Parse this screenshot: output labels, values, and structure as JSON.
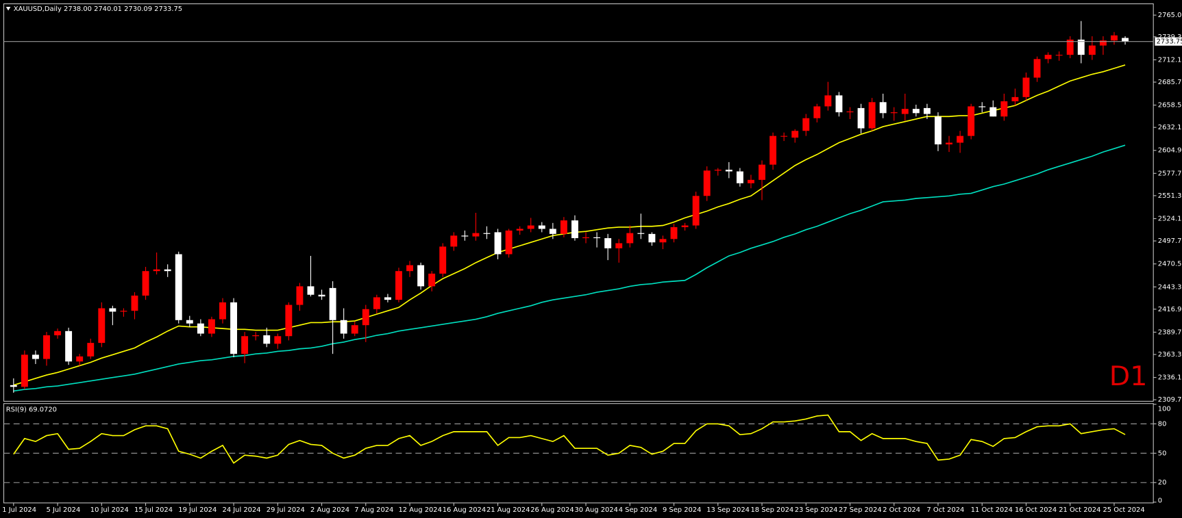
{
  "chart_data": [
    {
      "type": "candlestick",
      "title": "XAUUSD,Daily 2738.00 2740.01 2730.09 2733.75",
      "categories": [
        "1 Jul 2024",
        null,
        null,
        null,
        "5 Jul 2024",
        null,
        null,
        null,
        "10 Jul 2024",
        null,
        null,
        null,
        "15 Jul 2024",
        null,
        null,
        null,
        "19 Jul 2024",
        null,
        null,
        null,
        "24 Jul 2024",
        null,
        null,
        null,
        "29 Jul 2024",
        null,
        null,
        null,
        "2 Aug 2024",
        null,
        null,
        null,
        "7 Aug 2024",
        null,
        null,
        null,
        "12 Aug 2024",
        null,
        null,
        null,
        "16 Aug 2024",
        null,
        null,
        null,
        "21 Aug 2024",
        null,
        null,
        null,
        "26 Aug 2024",
        null,
        null,
        null,
        "30 Aug 2024",
        null,
        null,
        null,
        "4 Sep 2024",
        null,
        null,
        null,
        "9 Sep 2024",
        null,
        null,
        null,
        "13 Sep 2024",
        null,
        null,
        null,
        "18 Sep 2024",
        null,
        null,
        null,
        "23 Sep 2024",
        null,
        null,
        null,
        "27 Sep 2024",
        null,
        null,
        null,
        "2 Oct 2024",
        null,
        null,
        null,
        "7 Oct 2024",
        null,
        null,
        null,
        "11 Oct 2024",
        null,
        null,
        null,
        "16 Oct 2024",
        null,
        null,
        null,
        "21 Oct 2024",
        null,
        null,
        null,
        "25 Oct 2024",
        null
      ],
      "open": [
        2327,
        2325,
        2363,
        2358,
        2386,
        2391,
        2355,
        2361,
        2377,
        2418,
        2414,
        2415,
        2433,
        2462,
        2464,
        2482,
        2404,
        2400,
        2388,
        2405,
        2425,
        2364,
        2385,
        2386,
        2376,
        2385,
        2422,
        2444,
        2434,
        2442,
        2404,
        2388,
        2398,
        2417,
        2431,
        2428,
        2462,
        2469,
        2444,
        2459,
        2491,
        2504,
        2503,
        2507,
        2508,
        2482,
        2510,
        2512,
        2516,
        2512,
        2506,
        2522,
        2501,
        2502,
        2501,
        2489,
        2495,
        2507,
        2506,
        2496,
        2500,
        2514,
        2516,
        2551,
        2581,
        2582,
        2580,
        2566,
        2570,
        2588,
        2622,
        2620,
        2628,
        2643,
        2657,
        2670,
        2650,
        2655,
        2631,
        2662,
        2649,
        2648,
        2654,
        2655,
        2645,
        2612,
        2614,
        2622,
        2657,
        2656,
        2645,
        2663,
        2668,
        2691,
        2713,
        2718,
        2718,
        2736,
        2718,
        2729,
        2735,
        2738
      ],
      "high": [
        2335,
        2368,
        2368,
        2390,
        2394,
        2395,
        2364,
        2382,
        2425,
        2421,
        2418,
        2437,
        2467,
        2484,
        2470,
        2485,
        2409,
        2405,
        2408,
        2430,
        2430,
        2390,
        2390,
        2395,
        2388,
        2425,
        2448,
        2480,
        2440,
        2450,
        2418,
        2402,
        2422,
        2434,
        2435,
        2466,
        2474,
        2472,
        2462,
        2495,
        2508,
        2510,
        2531,
        2515,
        2512,
        2512,
        2515,
        2525,
        2520,
        2519,
        2526,
        2528,
        2508,
        2508,
        2506,
        2500,
        2516,
        2530,
        2508,
        2504,
        2518,
        2519,
        2556,
        2586,
        2584,
        2591,
        2584,
        2576,
        2593,
        2626,
        2626,
        2630,
        2648,
        2660,
        2686,
        2674,
        2656,
        2660,
        2667,
        2672,
        2656,
        2672,
        2659,
        2660,
        2650,
        2622,
        2628,
        2660,
        2662,
        2664,
        2672,
        2678,
        2697,
        2716,
        2721,
        2722,
        2740,
        2758,
        2740,
        2740,
        2745,
        2740.01
      ],
      "low": [
        2318,
        2322,
        2352,
        2350,
        2382,
        2351,
        2350,
        2358,
        2372,
        2398,
        2408,
        2405,
        2428,
        2458,
        2455,
        2400,
        2396,
        2385,
        2384,
        2400,
        2360,
        2353,
        2380,
        2372,
        2370,
        2380,
        2415,
        2432,
        2428,
        2364,
        2382,
        2385,
        2378,
        2412,
        2425,
        2425,
        2455,
        2440,
        2438,
        2455,
        2486,
        2498,
        2498,
        2500,
        2476,
        2478,
        2505,
        2508,
        2508,
        2500,
        2502,
        2498,
        2495,
        2490,
        2475,
        2472,
        2490,
        2500,
        2492,
        2488,
        2496,
        2510,
        2512,
        2545,
        2575,
        2572,
        2562,
        2560,
        2546,
        2582,
        2616,
        2614,
        2622,
        2638,
        2652,
        2645,
        2642,
        2625,
        2628,
        2643,
        2640,
        2640,
        2645,
        2642,
        2604,
        2603,
        2602,
        2618,
        2650,
        2645,
        2640,
        2658,
        2664,
        2686,
        2708,
        2711,
        2714,
        2708,
        2712,
        2718,
        2730,
        2730.09
      ],
      "close": [
        2325,
        2363,
        2358,
        2386,
        2391,
        2355,
        2361,
        2377,
        2418,
        2414,
        2415,
        2433,
        2462,
        2464,
        2462,
        2404,
        2400,
        2388,
        2405,
        2425,
        2364,
        2385,
        2386,
        2376,
        2385,
        2422,
        2444,
        2434,
        2432,
        2404,
        2388,
        2398,
        2417,
        2431,
        2428,
        2462,
        2469,
        2444,
        2459,
        2491,
        2504,
        2503,
        2507,
        2506,
        2482,
        2510,
        2512,
        2516,
        2512,
        2506,
        2522,
        2501,
        2502,
        2501,
        2489,
        2495,
        2507,
        2506,
        2496,
        2500,
        2514,
        2516,
        2551,
        2581,
        2582,
        2580,
        2566,
        2570,
        2588,
        2622,
        2622,
        2628,
        2643,
        2657,
        2670,
        2650,
        2651,
        2631,
        2662,
        2649,
        2650,
        2654,
        2649,
        2648,
        2612,
        2614,
        2622,
        2657,
        2656,
        2645,
        2663,
        2668,
        2691,
        2713,
        2718,
        2718,
        2736,
        2718,
        2729,
        2735,
        2741,
        2733.75
      ],
      "colors": {
        "up": "#ff0000",
        "down": "#ffffff"
      },
      "series": [
        {
          "color": "#ffff00",
          "values": [
            2327,
            2331,
            2335,
            2339,
            2342,
            2346,
            2350,
            2354,
            2359,
            2363,
            2367,
            2371,
            2378,
            2384,
            2391,
            2397,
            2396,
            2396,
            2395,
            2394,
            2393,
            2393,
            2392,
            2392,
            2392,
            2395,
            2398,
            2401,
            2401,
            2402,
            2402,
            2403,
            2407,
            2411,
            2415,
            2419,
            2428,
            2436,
            2445,
            2453,
            2459,
            2465,
            2472,
            2478,
            2484,
            2488,
            2492,
            2496,
            2500,
            2504,
            2506,
            2508,
            2509,
            2511,
            2513,
            2514,
            2514,
            2515,
            2515,
            2516,
            2520,
            2525,
            2529,
            2533,
            2538,
            2542,
            2547,
            2551,
            2560,
            2569,
            2578,
            2587,
            2594,
            2600,
            2607,
            2614,
            2619,
            2624,
            2628,
            2633,
            2636,
            2639,
            2642,
            2645,
            2645,
            2645,
            2646,
            2646,
            2649,
            2652,
            2655,
            2658,
            2664,
            2670,
            2675,
            2681,
            2687,
            2691,
            2695,
            2698,
            2702,
            2706
          ]
        },
        {
          "color": "#00e0c0",
          "values": [
            2320,
            2322,
            2323,
            2325,
            2326,
            2328,
            2330,
            2332,
            2334,
            2336,
            2338,
            2340,
            2343,
            2346,
            2349,
            2352,
            2354,
            2356,
            2357,
            2359,
            2361,
            2362,
            2364,
            2365,
            2367,
            2368,
            2370,
            2371,
            2373,
            2376,
            2378,
            2381,
            2383,
            2386,
            2388,
            2391,
            2393,
            2395,
            2397,
            2399,
            2401,
            2403,
            2405,
            2408,
            2412,
            2415,
            2418,
            2421,
            2425,
            2428,
            2430,
            2432,
            2434,
            2437,
            2439,
            2441,
            2444,
            2446,
            2447,
            2449,
            2450,
            2451,
            2458,
            2466,
            2473,
            2480,
            2484,
            2489,
            2493,
            2497,
            2502,
            2506,
            2511,
            2515,
            2520,
            2525,
            2530,
            2534,
            2539,
            2544,
            2545,
            2546,
            2548,
            2549,
            2550,
            2551,
            2553,
            2554,
            2558,
            2562,
            2565,
            2569,
            2573,
            2577,
            2582,
            2586,
            2590,
            2594,
            2598,
            2603,
            2607,
            2611
          ]
        }
      ],
      "ylim": [
        2307.9,
        2778.4
      ],
      "yticks": [
        {
          "value": 2309.7,
          "label": "2309.70"
        },
        {
          "value": 2336.1,
          "label": "2336.10"
        },
        {
          "value": 2363.3,
          "label": "2363.30"
        },
        {
          "value": 2389.7,
          "label": "2389.70"
        },
        {
          "value": 2416.9,
          "label": "2416.90"
        },
        {
          "value": 2443.3,
          "label": "2443.30"
        },
        {
          "value": 2470.5,
          "label": "2470.50"
        },
        {
          "value": 2497.7,
          "label": "2497.70"
        },
        {
          "value": 2524.1,
          "label": "2524.10"
        },
        {
          "value": 2551.3,
          "label": "2551.30"
        },
        {
          "value": 2577.7,
          "label": "2577.70"
        },
        {
          "value": 2604.9,
          "label": "2604.90"
        },
        {
          "value": 2632.1,
          "label": "2632.10"
        },
        {
          "value": 2658.5,
          "label": "2658.50"
        },
        {
          "value": 2685.7,
          "label": "2685.70"
        },
        {
          "value": 2712.1,
          "label": "2712.10"
        },
        {
          "value": 2739.3,
          "label": "2739.30"
        },
        {
          "value": 2765,
          "label": "2765.00"
        }
      ],
      "annotation": "D1"
    },
    {
      "type": "line",
      "title": "RSI(9) 69.0720",
      "series": [
        {
          "color": "#ffff00",
          "values": [
            49,
            65,
            62,
            68,
            70,
            54,
            55,
            62,
            70,
            68,
            68,
            74,
            78,
            78,
            75,
            52,
            49,
            45,
            52,
            58,
            40,
            48,
            47,
            45,
            48,
            59,
            63,
            59,
            58,
            50,
            45,
            48,
            55,
            58,
            58,
            65,
            68,
            58,
            62,
            68,
            72,
            72,
            72,
            72,
            58,
            66,
            66,
            68,
            65,
            62,
            68,
            55,
            55,
            55,
            48,
            50,
            58,
            56,
            49,
            52,
            60,
            60,
            73,
            80,
            80,
            78,
            69,
            70,
            75,
            82,
            82,
            83,
            85,
            88,
            89,
            72,
            72,
            63,
            70,
            65,
            65,
            65,
            62,
            60,
            43,
            44,
            48,
            64,
            62,
            57,
            65,
            66,
            72,
            77,
            78,
            78,
            80,
            70,
            72,
            74,
            75,
            69.072
          ]
        }
      ],
      "ylim": [
        0,
        100
      ],
      "yticks": [
        0,
        20,
        50,
        80,
        100
      ],
      "levels": [
        20,
        50,
        80
      ]
    }
  ]
}
